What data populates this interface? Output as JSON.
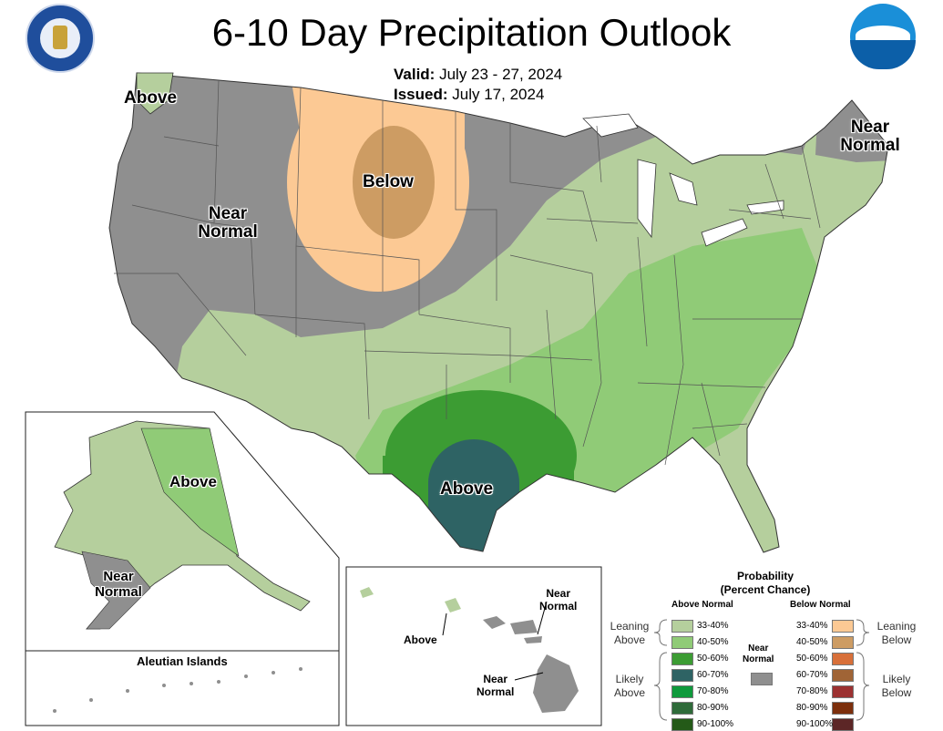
{
  "title": "6-10 Day Precipitation Outlook",
  "valid_label": "Valid:",
  "valid_value": "July 23 - 27, 2024",
  "issued_label": "Issued:",
  "issued_value": "July 17, 2024",
  "logos": {
    "left": "department-of-commerce-seal",
    "right": "noaa-logo"
  },
  "map_labels": {
    "above_nw": "Above",
    "near_normal_w_1": "Near",
    "near_normal_w_2": "Normal",
    "below": "Below",
    "near_normal_ne_1": "Near",
    "near_normal_ne_2": "Normal",
    "above_tx": "Above",
    "ak_above": "Above",
    "ak_near_1": "Near",
    "ak_near_2": "Normal",
    "aleutian": "Aleutian Islands",
    "hi_above": "Above",
    "hi_near_top_1": "Near",
    "hi_near_top_2": "Normal",
    "hi_near_bottom_1": "Near",
    "hi_near_bottom_2": "Normal"
  },
  "legend": {
    "title_1": "Probability",
    "title_2": "(Percent Chance)",
    "above_head": "Above Normal",
    "below_head": "Below Normal",
    "near_head_1": "Near",
    "near_head_2": "Normal",
    "leaning_above_1": "Leaning",
    "leaning_above_2": "Above",
    "likely_above_1": "Likely",
    "likely_above_2": "Above",
    "leaning_below_1": "Leaning",
    "leaning_below_2": "Below",
    "likely_below_1": "Likely",
    "likely_below_2": "Below",
    "above": [
      {
        "range": "33-40%",
        "color": "#b5cf9d"
      },
      {
        "range": "40-50%",
        "color": "#90cb77"
      },
      {
        "range": "50-60%",
        "color": "#3c9c33"
      },
      {
        "range": "60-70%",
        "color": "#2e6364"
      },
      {
        "range": "70-80%",
        "color": "#0f9a3c"
      },
      {
        "range": "80-90%",
        "color": "#2f6b3a"
      },
      {
        "range": "90-100%",
        "color": "#245a18"
      }
    ],
    "below": [
      {
        "range": "33-40%",
        "color": "#fcc994"
      },
      {
        "range": "40-50%",
        "color": "#cd9c63"
      },
      {
        "range": "50-60%",
        "color": "#d8703a"
      },
      {
        "range": "60-70%",
        "color": "#a06436"
      },
      {
        "range": "70-80%",
        "color": "#9c3131"
      },
      {
        "range": "80-90%",
        "color": "#7c2f0c"
      },
      {
        "range": "90-100%",
        "color": "#5c2626"
      }
    ],
    "near_color": "#8f8f8f"
  }
}
